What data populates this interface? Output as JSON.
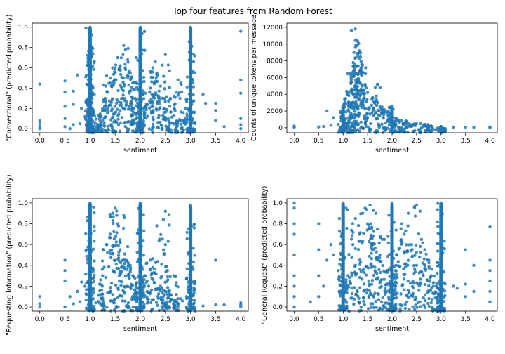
{
  "figure": {
    "title": "Top four features from Random Forest"
  },
  "chart_data": [
    {
      "type": "scatter",
      "xlabel": "sentiment",
      "ylabel": "\"Conventional\" (predicted probability)",
      "xlim": [
        -0.15,
        4.15
      ],
      "ylim": [
        -0.04,
        1.04
      ],
      "xticks": [
        "0.0",
        "0.5",
        "1.0",
        "1.5",
        "2.0",
        "2.5",
        "3.0",
        "3.5",
        "4.0"
      ],
      "yticks": [
        "0.0",
        "0.2",
        "0.4",
        "0.6",
        "0.8",
        "1.0"
      ],
      "grid": false,
      "color": "#1f77b4",
      "points": [
        [
          0.0,
          0.0
        ],
        [
          0.0,
          0.02
        ],
        [
          0.0,
          0.05
        ],
        [
          0.0,
          0.08
        ],
        [
          0.0,
          0.44
        ],
        [
          0.5,
          0.02
        ],
        [
          0.5,
          0.1
        ],
        [
          0.5,
          0.22
        ],
        [
          0.5,
          0.36
        ],
        [
          0.5,
          0.47
        ],
        [
          0.6,
          0.0
        ],
        [
          0.67,
          0.04
        ],
        [
          0.67,
          0.24
        ],
        [
          0.67,
          0.37
        ],
        [
          0.75,
          0.53
        ],
        [
          0.8,
          0.05
        ],
        [
          0.83,
          0.2
        ],
        [
          0.9,
          0.12
        ],
        [
          1.0,
          0.0
        ],
        [
          1.0,
          0.1
        ],
        [
          1.0,
          0.2
        ],
        [
          1.0,
          0.3
        ],
        [
          1.0,
          0.4
        ],
        [
          1.0,
          0.5
        ],
        [
          1.0,
          0.6
        ],
        [
          1.0,
          0.7
        ],
        [
          1.0,
          0.8
        ],
        [
          1.0,
          0.9
        ],
        [
          1.0,
          1.0
        ],
        [
          1.1,
          0.06
        ],
        [
          1.2,
          0.12
        ],
        [
          1.25,
          0.2
        ],
        [
          1.3,
          0.3
        ],
        [
          1.33,
          0.52
        ],
        [
          1.4,
          0.45
        ],
        [
          1.45,
          0.6
        ],
        [
          1.5,
          0.55
        ],
        [
          1.55,
          0.7
        ],
        [
          1.6,
          0.62
        ],
        [
          1.67,
          0.82
        ],
        [
          1.7,
          0.6
        ],
        [
          1.75,
          0.68
        ],
        [
          1.8,
          0.55
        ],
        [
          1.85,
          0.45
        ],
        [
          1.9,
          0.3
        ],
        [
          2.0,
          0.0
        ],
        [
          2.0,
          0.2
        ],
        [
          2.0,
          0.4
        ],
        [
          2.0,
          0.6
        ],
        [
          2.0,
          0.8
        ],
        [
          2.0,
          1.0
        ],
        [
          2.1,
          0.35
        ],
        [
          2.2,
          0.4
        ],
        [
          2.25,
          0.6
        ],
        [
          2.3,
          0.66
        ],
        [
          2.33,
          0.55
        ],
        [
          2.4,
          0.42
        ],
        [
          2.5,
          0.73
        ],
        [
          2.5,
          0.1
        ],
        [
          2.6,
          0.3
        ],
        [
          2.67,
          0.32
        ],
        [
          2.75,
          0.48
        ],
        [
          2.8,
          0.08
        ],
        [
          2.9,
          0.2
        ],
        [
          3.0,
          0.0
        ],
        [
          3.0,
          0.25
        ],
        [
          3.0,
          0.5
        ],
        [
          3.0,
          0.75
        ],
        [
          3.0,
          1.0
        ],
        [
          3.25,
          0.34
        ],
        [
          3.3,
          0.25
        ],
        [
          3.5,
          0.18
        ],
        [
          3.5,
          0.25
        ],
        [
          3.5,
          0.08
        ],
        [
          3.67,
          0.02
        ],
        [
          4.0,
          0.0
        ],
        [
          4.0,
          0.04
        ],
        [
          4.0,
          0.1
        ],
        [
          4.0,
          0.35
        ],
        [
          4.0,
          0.48
        ],
        [
          4.0,
          0.96
        ]
      ]
    },
    {
      "type": "scatter",
      "xlabel": "sentiment",
      "ylabel": "Counts of unique tokens per message",
      "xlim": [
        -0.15,
        4.15
      ],
      "ylim": [
        -600,
        12500
      ],
      "xticks": [
        "0.0",
        "0.5",
        "1.0",
        "1.5",
        "2.0",
        "2.5",
        "3.0",
        "3.5",
        "4.0"
      ],
      "yticks": [
        "0",
        "2000",
        "4000",
        "6000",
        "8000",
        "10000",
        "12000"
      ],
      "grid": false,
      "color": "#1f77b4",
      "points": [
        [
          0.0,
          50
        ],
        [
          0.0,
          200
        ],
        [
          0.5,
          100
        ],
        [
          0.6,
          150
        ],
        [
          0.67,
          2000
        ],
        [
          0.75,
          300
        ],
        [
          0.8,
          1200
        ],
        [
          0.9,
          400
        ],
        [
          1.0,
          200
        ],
        [
          1.0,
          1500
        ],
        [
          1.0,
          2500
        ],
        [
          1.05,
          3500
        ],
        [
          1.1,
          4000
        ],
        [
          1.12,
          3000
        ],
        [
          1.15,
          6500
        ],
        [
          1.17,
          5500
        ],
        [
          1.2,
          4500
        ],
        [
          1.22,
          9000
        ],
        [
          1.23,
          7000
        ],
        [
          1.25,
          11800
        ],
        [
          1.25,
          9600
        ],
        [
          1.28,
          10500
        ],
        [
          1.3,
          10300
        ],
        [
          1.3,
          8500
        ],
        [
          1.33,
          9200
        ],
        [
          1.35,
          6800
        ],
        [
          1.38,
          7600
        ],
        [
          1.4,
          7500
        ],
        [
          1.45,
          5000
        ],
        [
          1.5,
          4200
        ],
        [
          1.6,
          3600
        ],
        [
          1.7,
          5200
        ],
        [
          1.75,
          2500
        ],
        [
          1.8,
          2200
        ],
        [
          1.9,
          1900
        ],
        [
          2.0,
          1300
        ],
        [
          2.0,
          2600
        ],
        [
          2.1,
          1100
        ],
        [
          2.2,
          900
        ],
        [
          2.3,
          700
        ],
        [
          2.5,
          500
        ],
        [
          2.67,
          400
        ],
        [
          2.8,
          200
        ],
        [
          3.0,
          150
        ],
        [
          3.0,
          0
        ],
        [
          3.25,
          80
        ],
        [
          3.5,
          60
        ],
        [
          3.67,
          50
        ],
        [
          4.0,
          20
        ],
        [
          4.0,
          100
        ]
      ]
    },
    {
      "type": "scatter",
      "xlabel": "sentiment",
      "ylabel": "\"Requesting Information\" (predicted probability)",
      "xlim": [
        -0.15,
        4.15
      ],
      "ylim": [
        -0.04,
        1.04
      ],
      "xticks": [
        "0.0",
        "0.5",
        "1.0",
        "1.5",
        "2.0",
        "2.5",
        "3.0",
        "3.5",
        "4.0"
      ],
      "yticks": [
        "0.0",
        "0.2",
        "0.4",
        "0.6",
        "0.8",
        "1.0"
      ],
      "grid": false,
      "color": "#1f77b4",
      "points": [
        [
          0.0,
          0.0
        ],
        [
          0.0,
          0.03
        ],
        [
          0.0,
          0.1
        ],
        [
          0.5,
          0.0
        ],
        [
          0.5,
          0.25
        ],
        [
          0.5,
          0.35
        ],
        [
          0.5,
          0.45
        ],
        [
          0.6,
          0.1
        ],
        [
          0.67,
          0.03
        ],
        [
          0.75,
          0.15
        ],
        [
          0.8,
          0.05
        ],
        [
          0.83,
          0.24
        ],
        [
          0.9,
          0.2
        ],
        [
          1.0,
          0.0
        ],
        [
          1.0,
          0.2
        ],
        [
          1.0,
          0.4
        ],
        [
          1.0,
          0.6
        ],
        [
          1.0,
          0.8
        ],
        [
          1.0,
          1.0
        ],
        [
          1.2,
          0.12
        ],
        [
          1.25,
          0.3
        ],
        [
          1.33,
          0.6
        ],
        [
          1.4,
          0.7
        ],
        [
          1.45,
          0.9
        ],
        [
          1.5,
          0.95
        ],
        [
          1.55,
          0.8
        ],
        [
          1.6,
          0.55
        ],
        [
          1.67,
          0.88
        ],
        [
          1.7,
          0.45
        ],
        [
          1.75,
          0.58
        ],
        [
          1.8,
          0.4
        ],
        [
          1.85,
          0.3
        ],
        [
          2.0,
          0.0
        ],
        [
          2.0,
          0.25
        ],
        [
          2.0,
          0.5
        ],
        [
          2.0,
          0.75
        ],
        [
          2.0,
          1.0
        ],
        [
          2.1,
          0.3
        ],
        [
          2.2,
          0.45
        ],
        [
          2.25,
          0.38
        ],
        [
          2.33,
          0.78
        ],
        [
          2.4,
          0.2
        ],
        [
          2.5,
          0.15
        ],
        [
          2.5,
          0.6
        ],
        [
          2.5,
          0.92
        ],
        [
          2.6,
          0.12
        ],
        [
          2.67,
          0.3
        ],
        [
          2.75,
          0.08
        ],
        [
          3.0,
          0.0
        ],
        [
          3.0,
          0.2
        ],
        [
          3.0,
          0.4
        ],
        [
          3.0,
          0.6
        ],
        [
          3.0,
          0.8
        ],
        [
          3.0,
          0.98
        ],
        [
          3.25,
          0.01
        ],
        [
          3.5,
          0.02
        ],
        [
          3.5,
          0.45
        ],
        [
          3.67,
          0.02
        ],
        [
          4.0,
          0.0
        ],
        [
          4.0,
          0.02
        ],
        [
          4.0,
          0.04
        ]
      ]
    },
    {
      "type": "scatter",
      "xlabel": "sentiment",
      "ylabel": "\"General Request\" (predicted probability)",
      "xlim": [
        -0.15,
        4.15
      ],
      "ylim": [
        -0.04,
        1.04
      ],
      "xticks": [
        "0.0",
        "0.5",
        "1.0",
        "1.5",
        "2.0",
        "2.5",
        "3.0",
        "3.5",
        "4.0"
      ],
      "yticks": [
        "0.0",
        "0.2",
        "0.4",
        "0.6",
        "0.8",
        "1.0"
      ],
      "grid": false,
      "color": "#1f77b4",
      "points": [
        [
          0.0,
          0.0
        ],
        [
          0.0,
          0.1
        ],
        [
          0.0,
          0.2
        ],
        [
          0.0,
          0.3
        ],
        [
          0.0,
          0.5
        ],
        [
          0.0,
          0.7
        ],
        [
          0.0,
          0.8
        ],
        [
          0.0,
          0.95
        ],
        [
          0.0,
          1.0
        ],
        [
          0.33,
          0.05
        ],
        [
          0.5,
          0.1
        ],
        [
          0.5,
          0.3
        ],
        [
          0.5,
          0.55
        ],
        [
          0.5,
          0.8
        ],
        [
          0.6,
          0.2
        ],
        [
          0.67,
          0.45
        ],
        [
          0.75,
          0.6
        ],
        [
          0.8,
          0.5
        ],
        [
          0.9,
          0.35
        ],
        [
          1.0,
          0.0
        ],
        [
          1.0,
          0.25
        ],
        [
          1.0,
          0.5
        ],
        [
          1.0,
          0.75
        ],
        [
          1.0,
          1.0
        ],
        [
          1.1,
          0.3
        ],
        [
          1.2,
          0.6
        ],
        [
          1.25,
          0.85
        ],
        [
          1.33,
          0.7
        ],
        [
          1.4,
          0.9
        ],
        [
          1.45,
          0.95
        ],
        [
          1.5,
          0.8
        ],
        [
          1.55,
          0.98
        ],
        [
          1.6,
          0.6
        ],
        [
          1.67,
          0.9
        ],
        [
          1.7,
          0.75
        ],
        [
          1.75,
          0.5
        ],
        [
          1.8,
          0.65
        ],
        [
          1.9,
          0.35
        ],
        [
          2.0,
          0.0
        ],
        [
          2.0,
          0.25
        ],
        [
          2.0,
          0.5
        ],
        [
          2.0,
          0.75
        ],
        [
          2.0,
          1.0
        ],
        [
          2.1,
          0.5
        ],
        [
          2.2,
          0.8
        ],
        [
          2.25,
          0.7
        ],
        [
          2.33,
          0.9
        ],
        [
          2.4,
          0.6
        ],
        [
          2.5,
          0.98
        ],
        [
          2.5,
          0.4
        ],
        [
          2.6,
          0.65
        ],
        [
          2.67,
          0.55
        ],
        [
          2.75,
          0.45
        ],
        [
          2.8,
          0.3
        ],
        [
          2.9,
          0.2
        ],
        [
          3.0,
          0.0
        ],
        [
          3.0,
          0.25
        ],
        [
          3.0,
          0.5
        ],
        [
          3.0,
          0.75
        ],
        [
          3.0,
          1.0
        ],
        [
          3.25,
          0.2
        ],
        [
          3.33,
          0.18
        ],
        [
          3.5,
          0.1
        ],
        [
          3.5,
          0.22
        ],
        [
          3.5,
          0.55
        ],
        [
          3.67,
          0.4
        ],
        [
          3.67,
          0.15
        ],
        [
          4.0,
          0.05
        ],
        [
          4.0,
          0.15
        ],
        [
          4.0,
          0.25
        ],
        [
          4.0,
          0.35
        ],
        [
          4.0,
          0.45
        ],
        [
          4.0,
          0.77
        ]
      ]
    }
  ]
}
